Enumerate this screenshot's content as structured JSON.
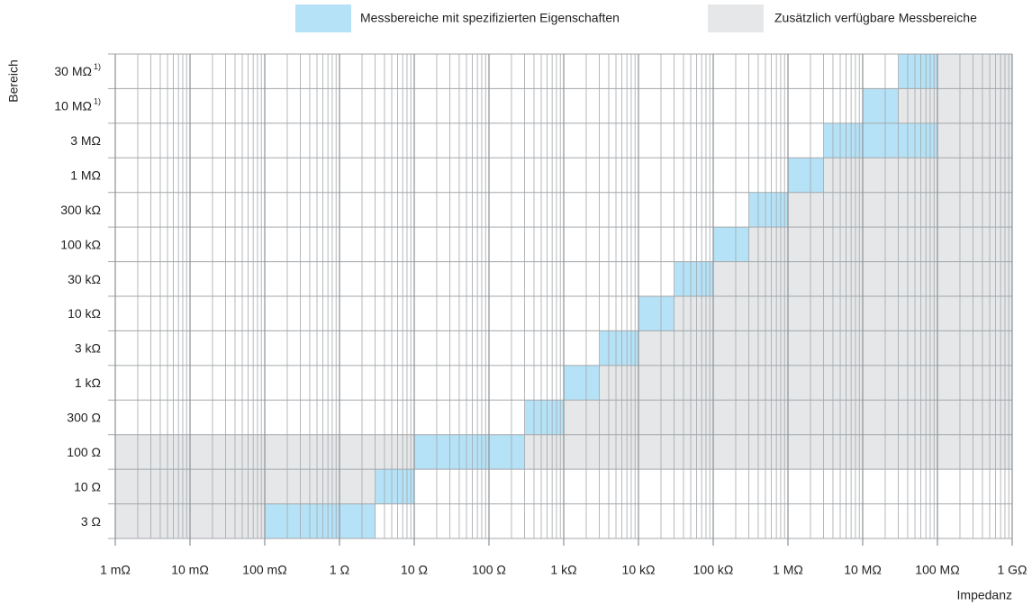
{
  "chart_data": {
    "type": "range-map",
    "y_label": "Bereich",
    "x_label": "Impedanz",
    "legend": {
      "specified": {
        "label": "Messbereiche mit spezifizierten Eigenschaften",
        "color": "#b5e2f6"
      },
      "additional": {
        "label": "Zusätzlich verfügbare Messbereiche",
        "color": "#e5e7e8"
      }
    },
    "log_x": true,
    "grid": true,
    "xlim": [
      0.001,
      1000000000
    ],
    "xticks": [
      {
        "value": 0.001,
        "label": "1 mΩ"
      },
      {
        "value": 0.01,
        "label": "10 mΩ"
      },
      {
        "value": 0.1,
        "label": "100 mΩ"
      },
      {
        "value": 1,
        "label": "1 Ω"
      },
      {
        "value": 10,
        "label": "10 Ω"
      },
      {
        "value": 100,
        "label": "100 Ω"
      },
      {
        "value": 1000,
        "label": "1 kΩ"
      },
      {
        "value": 10000,
        "label": "10 kΩ"
      },
      {
        "value": 100000,
        "label": "100 kΩ"
      },
      {
        "value": 1000000,
        "label": "1 MΩ"
      },
      {
        "value": 10000000,
        "label": "10 MΩ"
      },
      {
        "value": 100000000,
        "label": "100 MΩ"
      },
      {
        "value": 1000000000,
        "label": "1 GΩ"
      }
    ],
    "rows": [
      {
        "label": "30 MΩ",
        "note": "1)",
        "specified": [
          30000000,
          100000000
        ],
        "additional": [
          [
            100000000,
            1000000000
          ]
        ]
      },
      {
        "label": "10 MΩ",
        "note": "1)",
        "specified": [
          10000000,
          30000000
        ],
        "additional": [
          [
            30000000,
            1000000000
          ]
        ]
      },
      {
        "label": "3 MΩ",
        "specified": [
          3000000,
          100000000
        ],
        "additional": [
          [
            100000000,
            1000000000
          ]
        ]
      },
      {
        "label": "1 MΩ",
        "specified": [
          1000000,
          3000000
        ],
        "additional": [
          [
            3000000,
            1000000000
          ]
        ]
      },
      {
        "label": "300 kΩ",
        "specified": [
          300000,
          1000000
        ],
        "additional": [
          [
            1000000,
            1000000000
          ]
        ]
      },
      {
        "label": "100 kΩ",
        "specified": [
          100000,
          300000
        ],
        "additional": [
          [
            300000,
            1000000000
          ]
        ]
      },
      {
        "label": "30 kΩ",
        "specified": [
          30000,
          100000
        ],
        "additional": [
          [
            100000,
            1000000000
          ]
        ]
      },
      {
        "label": "10 kΩ",
        "specified": [
          10000,
          30000
        ],
        "additional": [
          [
            30000,
            1000000000
          ]
        ]
      },
      {
        "label": "3 kΩ",
        "specified": [
          3000,
          10000
        ],
        "additional": [
          [
            10000,
            1000000000
          ]
        ]
      },
      {
        "label": "1 kΩ",
        "specified": [
          1000,
          3000
        ],
        "additional": [
          [
            3000,
            1000000000
          ]
        ]
      },
      {
        "label": "300 Ω",
        "specified": [
          300,
          1000
        ],
        "additional": [
          [
            1000,
            1000000000
          ]
        ]
      },
      {
        "label": "100 Ω",
        "specified": [
          10,
          300
        ],
        "additional": [
          [
            0.001,
            10
          ],
          [
            300,
            1000000000
          ]
        ]
      },
      {
        "label": "10 Ω",
        "specified": [
          3,
          10
        ],
        "additional": [
          [
            0.001,
            3
          ]
        ]
      },
      {
        "label": "3 Ω",
        "specified": [
          0.1,
          3
        ],
        "additional": [
          [
            0.001,
            0.1
          ]
        ]
      }
    ]
  }
}
